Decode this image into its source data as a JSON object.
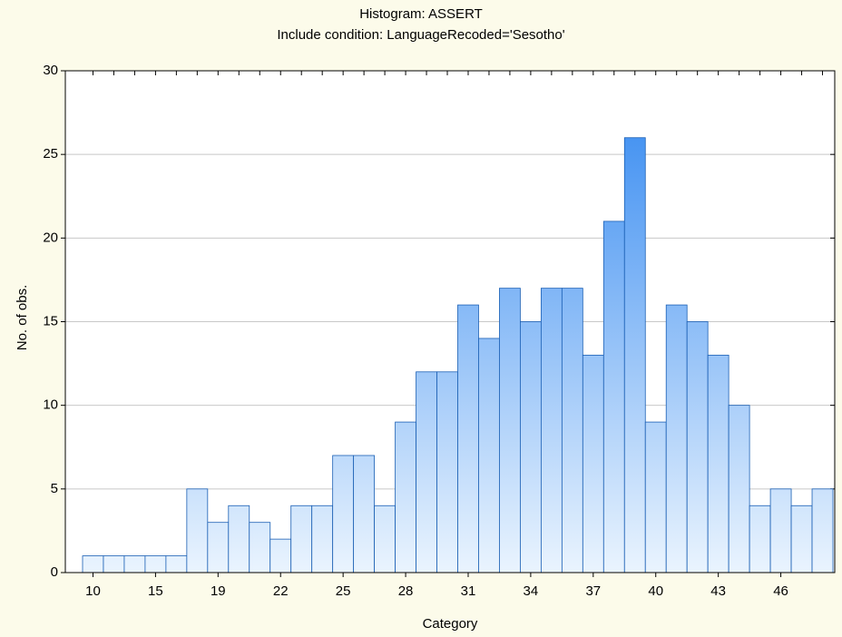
{
  "chart_data": {
    "type": "bar",
    "title": "Histogram: ASSERT",
    "subtitle": "Include condition: LanguageRecoded='Sesotho'",
    "x_label": "Category",
    "y_label": "No. of obs.",
    "categories": [
      "10",
      null,
      null,
      "15",
      null,
      null,
      "19",
      null,
      null,
      "22",
      null,
      null,
      "25",
      null,
      null,
      "28",
      null,
      null,
      "31",
      null,
      null,
      "34",
      null,
      null,
      "37",
      null,
      null,
      "40",
      null,
      null,
      "43",
      null,
      null,
      "46",
      null,
      null
    ],
    "values": [
      1,
      1,
      1,
      1,
      1,
      5,
      3,
      4,
      3,
      2,
      4,
      4,
      7,
      7,
      4,
      9,
      12,
      12,
      16,
      14,
      17,
      15,
      17,
      17,
      13,
      21,
      26,
      9,
      16,
      15,
      13,
      10,
      4,
      5,
      4,
      5
    ],
    "color": "#2f86f0",
    "ylim": [
      0,
      30
    ],
    "yticks": [
      0,
      5,
      10,
      15,
      20,
      25,
      30
    ],
    "grid": true
  }
}
